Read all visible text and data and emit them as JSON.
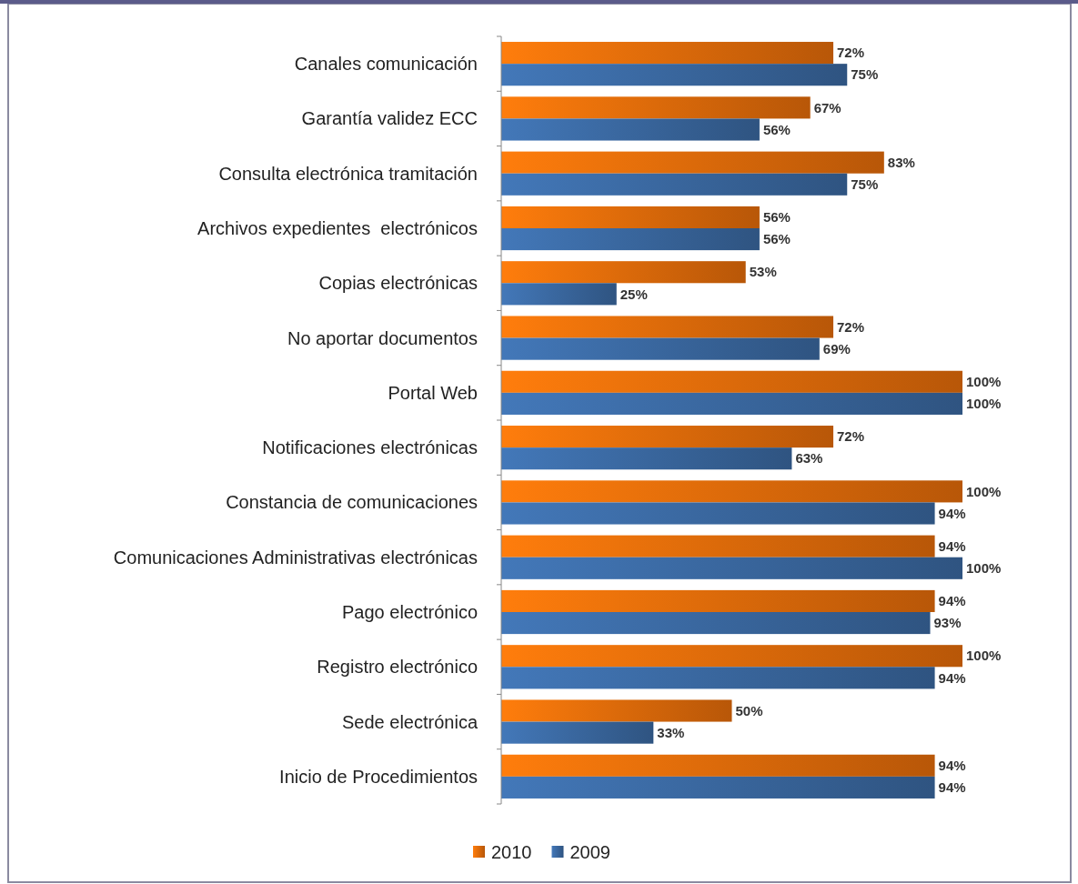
{
  "chart_data": {
    "type": "bar",
    "orientation": "horizontal",
    "categories": [
      "Canales comunicación",
      "Garantía validez ECC",
      "Consulta electrónica tramitación",
      "Archivos expedientes  electrónicos",
      "Copias electrónicas",
      "No aportar documentos",
      "Portal Web",
      "Notificaciones electrónicas",
      "Constancia de comunicaciones",
      "Comunicaciones Administrativas electrónicas",
      "Pago electrónico",
      "Registro electrónico",
      "Sede electrónica",
      "Inicio de Procedimientos"
    ],
    "series": [
      {
        "name": "2010",
        "color": "#e46c0a",
        "values": [
          72,
          67,
          83,
          56,
          53,
          72,
          100,
          72,
          100,
          94,
          94,
          100,
          50,
          94
        ],
        "value_labels": [
          "72%",
          "67%",
          "83%",
          "56%",
          "53%",
          "72%",
          "100%",
          "72%",
          "100%",
          "94%",
          "94%",
          "100%",
          "50%",
          "94%"
        ]
      },
      {
        "name": "2009",
        "color": "#3a68a0",
        "values": [
          75,
          56,
          75,
          56,
          25,
          69,
          100,
          63,
          94,
          100,
          93,
          94,
          33,
          94
        ],
        "value_labels": [
          "75%",
          "56%",
          "75%",
          "56%",
          "25%",
          "69%",
          "100%",
          "63%",
          "94%",
          "100%",
          "93%",
          "94%",
          "33%",
          "94%"
        ]
      }
    ],
    "legend": "bottom",
    "grid": false
  }
}
